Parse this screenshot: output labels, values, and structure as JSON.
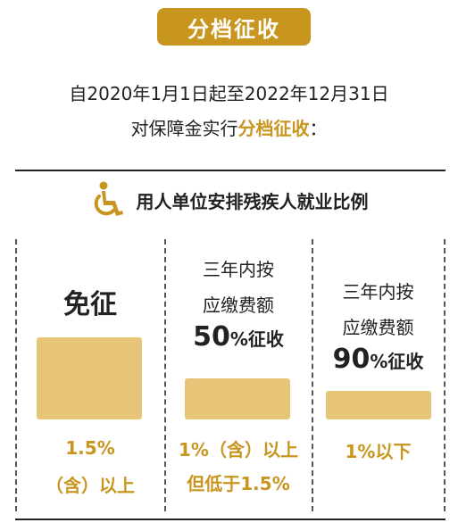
{
  "title": "分档征收",
  "intro": {
    "line1": "自2020年1月1日起至2022年12月31日",
    "line2_prefix": "对保障金实行",
    "line2_highlight": "分档征收",
    "line2_suffix": "："
  },
  "header": {
    "icon": "wheelchair-icon",
    "text": "用人单位安排残疾人就业比例"
  },
  "columns": [
    {
      "label": "免征",
      "bar_level": 1.0,
      "condition_line1": "1.5%",
      "condition_line2": "（含）以上"
    },
    {
      "label_line1": "三年内按",
      "label_line2": "应缴费额",
      "percent_num": "50",
      "percent_suffix": "%征收",
      "bar_level": 0.5,
      "condition_line1": "1%（含）以上",
      "condition_line2": "但低于1.5%"
    },
    {
      "label_line1": "三年内按",
      "label_line2": "应缴费额",
      "percent_num": "90",
      "percent_suffix": "%征收",
      "bar_level": 0.35,
      "condition_line1": "1%以下"
    }
  ],
  "colors": {
    "accent": "#c8951e",
    "bar": "#e6c579",
    "text": "#222222"
  }
}
